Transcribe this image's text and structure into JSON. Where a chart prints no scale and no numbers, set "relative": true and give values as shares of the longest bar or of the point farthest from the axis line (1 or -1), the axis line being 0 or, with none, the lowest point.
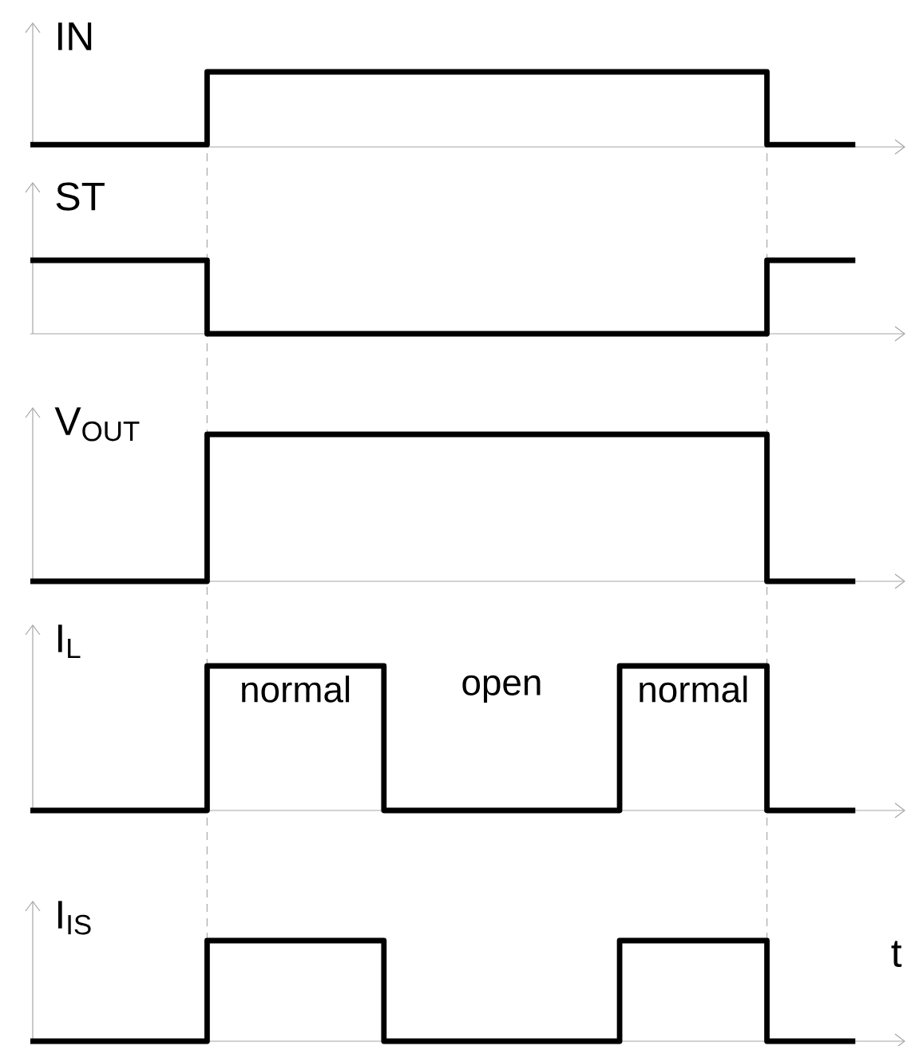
{
  "chart_data": [
    {
      "type": "step",
      "relative": true,
      "ylabel": "IN",
      "color": "#000000",
      "categories": [
        null,
        null,
        null,
        null,
        null,
        null,
        null,
        null,
        null,
        null,
        null,
        null,
        null,
        null,
        null,
        null,
        null,
        null,
        null,
        null,
        null,
        null,
        null,
        null,
        null,
        null,
        null,
        null,
        null
      ],
      "values": [
        0.03,
        0.03,
        0.03,
        0.03,
        0.03,
        0.03,
        1,
        1,
        1,
        1,
        1,
        1,
        1,
        1,
        1,
        1,
        1,
        1,
        1,
        1,
        1,
        1,
        1,
        1,
        1,
        0.03,
        0.03,
        0.03,
        0.03
      ]
    },
    {
      "type": "step",
      "relative": true,
      "ylabel": "ST",
      "color": "#000000",
      "categories": [
        null,
        null,
        null,
        null,
        null,
        null,
        null,
        null,
        null,
        null,
        null,
        null,
        null,
        null,
        null,
        null,
        null,
        null,
        null,
        null,
        null,
        null,
        null,
        null,
        null,
        null,
        null,
        null,
        null
      ],
      "values": [
        1,
        1,
        1,
        1,
        1,
        1,
        0,
        0,
        0,
        0,
        0,
        0,
        0,
        0,
        0,
        0,
        0,
        0,
        0,
        0,
        0,
        0,
        0,
        0,
        0,
        1,
        1,
        1,
        1
      ]
    },
    {
      "type": "step",
      "relative": true,
      "ylabel": "V$_{OUT}$",
      "color": "#000000",
      "categories": [
        null,
        null,
        null,
        null,
        null,
        null,
        null,
        null,
        null,
        null,
        null,
        null,
        null,
        null,
        null,
        null,
        null,
        null,
        null,
        null,
        null,
        null,
        null,
        null,
        null,
        null,
        null,
        null,
        null
      ],
      "values": [
        0,
        0,
        0,
        0,
        0,
        0,
        1,
        1,
        1,
        1,
        1,
        1,
        1,
        1,
        1,
        1,
        1,
        1,
        1,
        1,
        1,
        1,
        1,
        1,
        1,
        0,
        0,
        0,
        0
      ]
    },
    {
      "type": "step",
      "relative": true,
      "ylabel": "I$_{L}$",
      "color": "#000000",
      "categories": [
        null,
        null,
        null,
        null,
        null,
        null,
        null,
        null,
        null,
        null,
        null,
        null,
        null,
        null,
        null,
        null,
        null,
        null,
        null,
        null,
        null,
        null,
        null,
        null,
        null,
        null,
        null,
        null,
        null
      ],
      "values": [
        0,
        0,
        0,
        0,
        0,
        0,
        1,
        1,
        1,
        1,
        1,
        1,
        0,
        0,
        0,
        0,
        0,
        0,
        0,
        0,
        1,
        1,
        1,
        1,
        1,
        0,
        0,
        0,
        0
      ],
      "annotations": [
        "normal",
        "open",
        "normal"
      ]
    },
    {
      "type": "step",
      "relative": true,
      "ylabel": "I$_{IS}$",
      "xlabel": "t",
      "color": "#000000",
      "categories": [
        null,
        null,
        null,
        null,
        null,
        null,
        null,
        null,
        null,
        null,
        null,
        null,
        null,
        null,
        null,
        null,
        null,
        null,
        null,
        null,
        null,
        null,
        null,
        null,
        null,
        null,
        null,
        null,
        null
      ],
      "values": [
        0,
        0,
        0,
        0,
        0,
        0,
        1,
        1,
        1,
        1,
        1,
        1,
        0,
        0,
        0,
        0,
        0,
        0,
        0,
        0,
        1,
        1,
        1,
        1,
        1,
        0,
        0,
        0,
        0
      ]
    }
  ]
}
